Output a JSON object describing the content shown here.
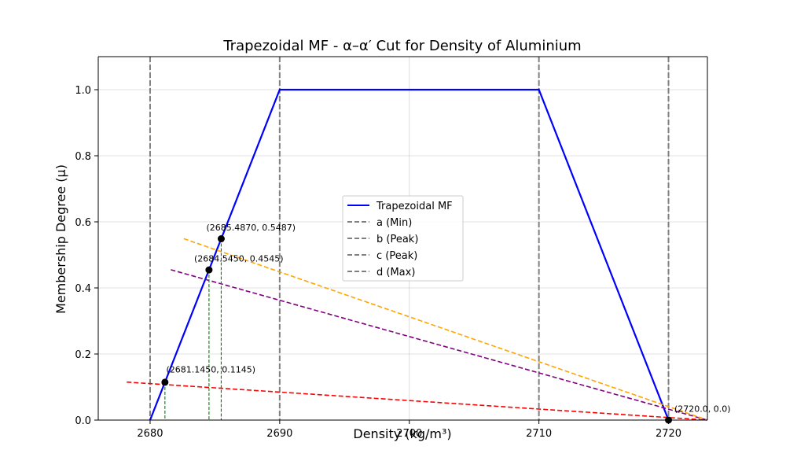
{
  "chart_data": {
    "type": "line",
    "title": "Trapezoidal MF - α–α′ Cut for Density of Aluminium",
    "xlabel": "Density (kg/m³)",
    "ylabel": "Membership Degree (μ)",
    "xlim": [
      2676,
      2723
    ],
    "ylim": [
      0,
      1.1
    ],
    "xticks": [
      2680,
      2690,
      2700,
      2710,
      2720
    ],
    "yticks": [
      0.0,
      0.2,
      0.4,
      0.6,
      0.8,
      1.0
    ],
    "xtick_labels": [
      "2680",
      "2690",
      "2700",
      "2710",
      "2720"
    ],
    "ytick_labels": [
      "0.0",
      "0.2",
      "0.4",
      "0.6",
      "0.8",
      "1.0"
    ],
    "grid": true,
    "legend_position": "center",
    "mf": {
      "name": "Trapezoidal MF",
      "color": "#0000ff",
      "x": [
        2680,
        2690,
        2710,
        2720
      ],
      "y": [
        0,
        1,
        1,
        0
      ]
    },
    "vlines": [
      {
        "name": "a (Min)",
        "x": 2680,
        "color": "#808080"
      },
      {
        "name": "b (Peak)",
        "x": 2690,
        "color": "#808080"
      },
      {
        "name": "c (Peak)",
        "x": 2710,
        "color": "#808080"
      },
      {
        "name": "d (Max)",
        "x": 2720,
        "color": "#808080"
      }
    ],
    "cut_lines": [
      {
        "color": "#ff0000",
        "x": [
          2678.2,
          2723
        ],
        "y": [
          0.115,
          0
        ]
      },
      {
        "color": "#800080",
        "x": [
          2681.6,
          2723
        ],
        "y": [
          0.455,
          0
        ]
      },
      {
        "color": "#ffa500",
        "x": [
          2682.6,
          2723
        ],
        "y": [
          0.549,
          0
        ]
      }
    ],
    "drop_lines": [
      {
        "x": 2681.145,
        "y": 0.1145,
        "color": "#008000"
      },
      {
        "x": 2684.545,
        "y": 0.4545,
        "color": "#008000"
      },
      {
        "x": 2685.487,
        "y": 0.5487,
        "color": "#008000"
      }
    ],
    "points": [
      {
        "x": 2681.145,
        "y": 0.1145,
        "label": "(2681.1450, 0.1145)",
        "dx": 0.1,
        "dy": 0.03
      },
      {
        "x": 2684.545,
        "y": 0.4545,
        "label": "(2684.5450, 0.4545)",
        "dx": -1.15,
        "dy": 0.025
      },
      {
        "x": 2685.487,
        "y": 0.5487,
        "label": "(2685.4870, 0.5487)",
        "dx": -1.15,
        "dy": 0.025
      },
      {
        "x": 2720.0,
        "y": 0.0,
        "label": "(2720.0, 0.0)",
        "dx": 0.45,
        "dy": 0.025
      }
    ]
  }
}
